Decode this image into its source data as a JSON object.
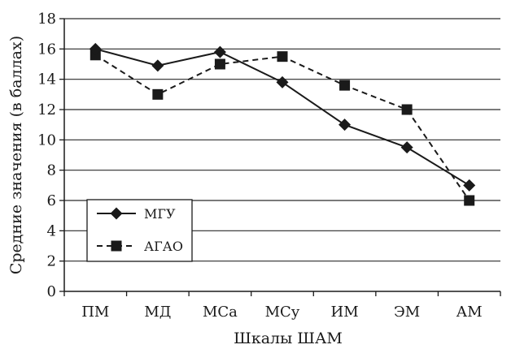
{
  "chart_data": {
    "type": "line",
    "title": "",
    "xlabel": "Шкалы ШАМ",
    "ylabel": "Средние значения (в баллах)",
    "ylim": [
      0,
      18
    ],
    "ytick_step": 2,
    "grid": "horizontal",
    "legend_position": "lower-left",
    "categories": [
      "ПМ",
      "МД",
      "МСа",
      "МСу",
      "ИМ",
      "ЭМ",
      "АМ"
    ],
    "series": [
      {
        "name": "МГУ",
        "marker": "diamond",
        "line": "solid",
        "color": "#1a1a1a",
        "values": [
          16.0,
          14.9,
          15.8,
          13.8,
          11.0,
          9.5,
          7.0
        ]
      },
      {
        "name": "АГАО",
        "marker": "square",
        "line": "dashed",
        "color": "#1a1a1a",
        "values": [
          15.6,
          13.0,
          15.0,
          15.5,
          13.6,
          12.0,
          6.0
        ]
      }
    ]
  }
}
